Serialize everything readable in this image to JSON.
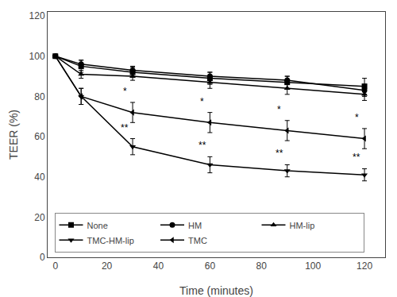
{
  "chart_data": {
    "type": "line",
    "xlabel": "Time (minutes)",
    "ylabel": "TEER (%)",
    "x": [
      0,
      10,
      30,
      60,
      90,
      120
    ],
    "series": [
      {
        "name": "None",
        "color": "#000000",
        "marker": "square",
        "values": [
          100,
          95,
          92,
          89,
          87,
          85
        ],
        "yerr": [
          0,
          3,
          2.5,
          3,
          3,
          4
        ]
      },
      {
        "name": "HM",
        "color": "#000000",
        "marker": "circle",
        "values": [
          100,
          96,
          93,
          90,
          88,
          83
        ],
        "yerr": [
          0,
          2,
          2,
          2,
          2,
          3
        ]
      },
      {
        "name": "HM-lip",
        "color": "#000000",
        "marker": "triangle-up",
        "values": [
          100,
          91,
          90,
          87,
          84,
          81
        ],
        "yerr": [
          0,
          2,
          2,
          3,
          3,
          3
        ]
      },
      {
        "name": "TMC-HM-lip",
        "color": "#000000",
        "marker": "triangle-down",
        "values": [
          100,
          80,
          55,
          46,
          43,
          41
        ],
        "yerr": [
          0,
          4,
          4,
          4,
          3,
          3
        ]
      },
      {
        "name": "TMC",
        "color": "#000000",
        "marker": "triangle-left",
        "values": [
          100,
          80,
          72,
          67,
          63,
          59
        ],
        "yerr": [
          0,
          4,
          5,
          5,
          5,
          5
        ]
      }
    ],
    "annotations": [
      {
        "text": "*",
        "x": 27,
        "y": 79
      },
      {
        "text": "*",
        "x": 57,
        "y": 74
      },
      {
        "text": "*",
        "x": 87,
        "y": 70
      },
      {
        "text": "*",
        "x": 117,
        "y": 66
      },
      {
        "text": "**",
        "x": 27,
        "y": 61
      },
      {
        "text": "**",
        "x": 57,
        "y": 52
      },
      {
        "text": "**",
        "x": 87,
        "y": 48
      },
      {
        "text": "**",
        "x": 117,
        "y": 46
      }
    ],
    "xlim": [
      -3,
      128
    ],
    "ylim": [
      0,
      122
    ],
    "xticks": [
      0,
      20,
      40,
      60,
      80,
      100,
      120
    ],
    "yticks": [
      0,
      20,
      40,
      60,
      80,
      100,
      120
    ],
    "grid": false,
    "legend": "lower left"
  }
}
